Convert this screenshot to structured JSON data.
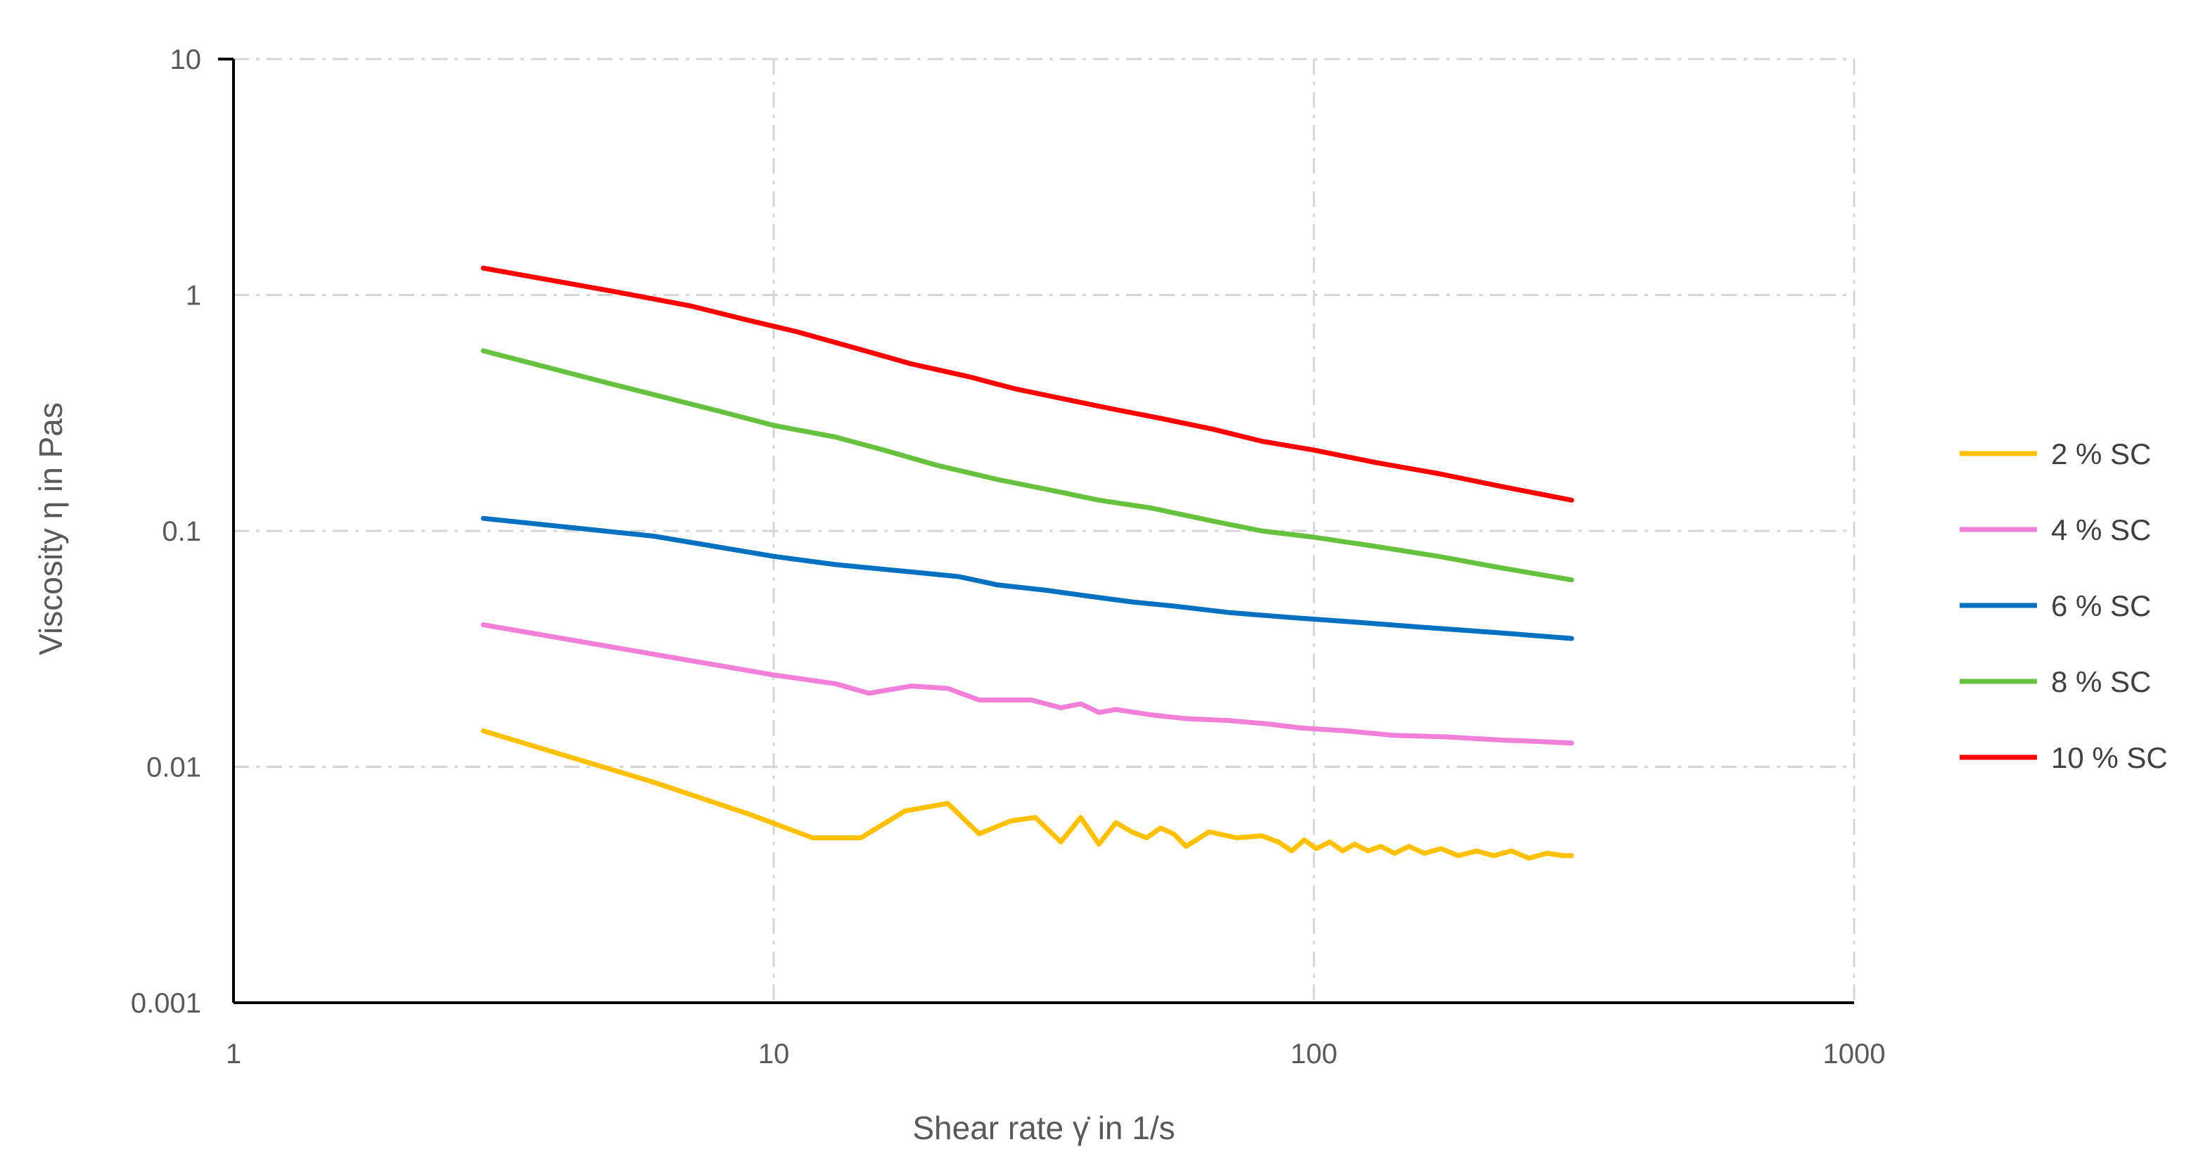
{
  "chart_data": {
    "type": "line",
    "xlabel": "Shear rate γ̇ in 1/s",
    "ylabel": "Viscosity η in Pas",
    "xscale": "log",
    "yscale": "log",
    "xlim": [
      1,
      1000
    ],
    "ylim": [
      0.001,
      10
    ],
    "x_ticks": [
      "1",
      "10",
      "100",
      "1000"
    ],
    "y_ticks": [
      "0.001",
      "0.01",
      "0.1",
      "1",
      "10"
    ],
    "grid": "dash-dot, light gray",
    "legend_position": "right",
    "series": [
      {
        "name": "2 % SC",
        "color": "#FFC000",
        "points": [
          [
            2.9,
            0.0142
          ],
          [
            6.0,
            0.0086
          ],
          [
            9.0,
            0.0063
          ],
          [
            11.8,
            0.005
          ],
          [
            14.5,
            0.005
          ],
          [
            17.5,
            0.0065
          ],
          [
            21.0,
            0.007
          ],
          [
            24.0,
            0.0052
          ],
          [
            27.5,
            0.0059
          ],
          [
            30.5,
            0.0061
          ],
          [
            34.0,
            0.0048
          ],
          [
            37.0,
            0.0061
          ],
          [
            40.0,
            0.0047
          ],
          [
            43.0,
            0.0058
          ],
          [
            46.0,
            0.0053
          ],
          [
            49.0,
            0.005
          ],
          [
            52.0,
            0.0055
          ],
          [
            55.0,
            0.0052
          ],
          [
            58.0,
            0.0046
          ],
          [
            64.0,
            0.0053
          ],
          [
            72.0,
            0.005
          ],
          [
            80.0,
            0.0051
          ],
          [
            86.0,
            0.0048
          ],
          [
            91.0,
            0.0044
          ],
          [
            96.0,
            0.0049
          ],
          [
            101.0,
            0.0045
          ],
          [
            107.0,
            0.0048
          ],
          [
            113.0,
            0.0044
          ],
          [
            119.0,
            0.0047
          ],
          [
            126.0,
            0.0044
          ],
          [
            133.0,
            0.0046
          ],
          [
            141.0,
            0.0043
          ],
          [
            150.0,
            0.0046
          ],
          [
            160.0,
            0.0043
          ],
          [
            172.0,
            0.0045
          ],
          [
            185.0,
            0.0042
          ],
          [
            200.0,
            0.0044
          ],
          [
            215.0,
            0.0042
          ],
          [
            232.0,
            0.0044
          ],
          [
            250.0,
            0.0041
          ],
          [
            270.0,
            0.0043
          ],
          [
            290.0,
            0.0042
          ],
          [
            300.0,
            0.0042
          ]
        ]
      },
      {
        "name": "4 % SC",
        "color": "#F27FD8",
        "points": [
          [
            2.9,
            0.04
          ],
          [
            6.0,
            0.03
          ],
          [
            10.0,
            0.0245
          ],
          [
            13.0,
            0.0225
          ],
          [
            15.0,
            0.0205
          ],
          [
            18.0,
            0.022
          ],
          [
            21.0,
            0.0215
          ],
          [
            24.0,
            0.0192
          ],
          [
            30.0,
            0.0192
          ],
          [
            34.0,
            0.0178
          ],
          [
            37.0,
            0.0185
          ],
          [
            40.0,
            0.017
          ],
          [
            43.0,
            0.0175
          ],
          [
            50.0,
            0.0166
          ],
          [
            58.0,
            0.016
          ],
          [
            70.0,
            0.0157
          ],
          [
            82.0,
            0.0152
          ],
          [
            95.0,
            0.0146
          ],
          [
            115.0,
            0.0142
          ],
          [
            140.0,
            0.0136
          ],
          [
            175.0,
            0.0134
          ],
          [
            220.0,
            0.013
          ],
          [
            260.0,
            0.0128
          ],
          [
            300.0,
            0.0126
          ]
        ]
      },
      {
        "name": "6 % SC",
        "color": "#0070C0",
        "points": [
          [
            2.9,
            0.113
          ],
          [
            6.0,
            0.095
          ],
          [
            10.0,
            0.078
          ],
          [
            13.0,
            0.072
          ],
          [
            18.0,
            0.067
          ],
          [
            22.0,
            0.064
          ],
          [
            26.0,
            0.059
          ],
          [
            32.0,
            0.056
          ],
          [
            38.0,
            0.053
          ],
          [
            46.0,
            0.05
          ],
          [
            55.0,
            0.048
          ],
          [
            70.0,
            0.045
          ],
          [
            90.0,
            0.043
          ],
          [
            120.0,
            0.041
          ],
          [
            160.0,
            0.039
          ],
          [
            220.0,
            0.037
          ],
          [
            300.0,
            0.035
          ]
        ]
      },
      {
        "name": "8 % SC",
        "color": "#66C13F",
        "points": [
          [
            2.9,
            0.58
          ],
          [
            5.0,
            0.42
          ],
          [
            8.0,
            0.32
          ],
          [
            10.0,
            0.28
          ],
          [
            13.0,
            0.25
          ],
          [
            16.0,
            0.22
          ],
          [
            20.0,
            0.19
          ],
          [
            26.0,
            0.165
          ],
          [
            33.0,
            0.148
          ],
          [
            40.0,
            0.135
          ],
          [
            50.0,
            0.125
          ],
          [
            65.0,
            0.11
          ],
          [
            80.0,
            0.1
          ],
          [
            100.0,
            0.094
          ],
          [
            130.0,
            0.086
          ],
          [
            170.0,
            0.078
          ],
          [
            220.0,
            0.07
          ],
          [
            300.0,
            0.062
          ]
        ]
      },
      {
        "name": "10 % SC",
        "color": "#FF0000",
        "points": [
          [
            2.9,
            1.3
          ],
          [
            5.0,
            1.04
          ],
          [
            7.0,
            0.9
          ],
          [
            9.0,
            0.78
          ],
          [
            11.0,
            0.7
          ],
          [
            14.0,
            0.6
          ],
          [
            18.0,
            0.51
          ],
          [
            23.0,
            0.45
          ],
          [
            28.0,
            0.4
          ],
          [
            35.0,
            0.36
          ],
          [
            42.0,
            0.33
          ],
          [
            52.0,
            0.3
          ],
          [
            65.0,
            0.27
          ],
          [
            80.0,
            0.24
          ],
          [
            100.0,
            0.22
          ],
          [
            130.0,
            0.195
          ],
          [
            170.0,
            0.175
          ],
          [
            220.0,
            0.155
          ],
          [
            300.0,
            0.135
          ]
        ]
      }
    ]
  }
}
